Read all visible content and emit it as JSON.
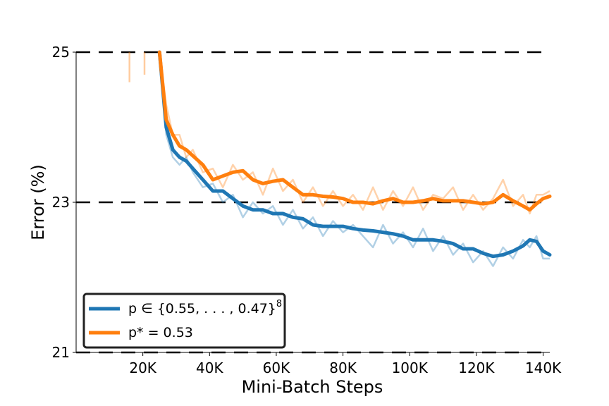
{
  "chart_data": {
    "type": "line",
    "xlabel": "Mini-Batch Steps",
    "ylabel": "Error (%)",
    "xlim": [
      0,
      142000
    ],
    "ylim": [
      21,
      25
    ],
    "x_ticks": [
      {
        "value": 20000,
        "label": "20K"
      },
      {
        "value": 40000,
        "label": "40K"
      },
      {
        "value": 60000,
        "label": "60K"
      },
      {
        "value": 80000,
        "label": "80K"
      },
      {
        "value": 100000,
        "label": "100K"
      },
      {
        "value": 120000,
        "label": "120K"
      },
      {
        "value": 140000,
        "label": "140K"
      }
    ],
    "y_ticks": [
      {
        "value": 21,
        "label": "21"
      },
      {
        "value": 23,
        "label": "23"
      },
      {
        "value": 25,
        "label": "25"
      }
    ],
    "reference_lines": [
      21,
      23,
      25
    ],
    "legend": {
      "placement": "lower-left"
    },
    "series": [
      {
        "name": "p ∈ {0.55, . . . , 0.47}",
        "name_superscript": "8",
        "color": "#1f77b4",
        "x": [
          25000,
          27000,
          29000,
          31000,
          33000,
          35000,
          38000,
          41000,
          44000,
          47000,
          50000,
          53000,
          56000,
          59000,
          62000,
          65000,
          68000,
          71000,
          74000,
          77000,
          80000,
          83000,
          86000,
          89000,
          92000,
          95000,
          98000,
          101000,
          104000,
          107000,
          110000,
          113000,
          116000,
          119000,
          122000,
          125000,
          128000,
          131000,
          134000,
          136000,
          138000,
          140000,
          142000
        ],
        "smoothed": [
          25.0,
          24.0,
          23.7,
          23.6,
          23.55,
          23.45,
          23.3,
          23.15,
          23.15,
          23.05,
          22.95,
          22.9,
          22.9,
          22.85,
          22.85,
          22.8,
          22.78,
          22.7,
          22.68,
          22.68,
          22.68,
          22.65,
          22.63,
          22.62,
          22.6,
          22.58,
          22.55,
          22.5,
          22.5,
          22.5,
          22.48,
          22.45,
          22.38,
          22.38,
          22.32,
          22.28,
          22.3,
          22.35,
          22.42,
          22.5,
          22.48,
          22.35,
          22.3
        ],
        "raw": [
          25.0,
          23.9,
          23.6,
          23.5,
          23.6,
          23.4,
          23.2,
          23.25,
          23.0,
          23.1,
          22.8,
          23.0,
          22.85,
          22.95,
          22.7,
          22.9,
          22.65,
          22.8,
          22.55,
          22.75,
          22.6,
          22.7,
          22.55,
          22.4,
          22.7,
          22.45,
          22.6,
          22.4,
          22.65,
          22.35,
          22.55,
          22.3,
          22.45,
          22.2,
          22.35,
          22.15,
          22.4,
          22.25,
          22.5,
          22.4,
          22.55,
          22.25,
          22.25
        ]
      },
      {
        "name": "p* = 0.53",
        "color": "#ff7f0e",
        "x": [
          25000,
          27000,
          29000,
          31000,
          33000,
          35000,
          38000,
          41000,
          44000,
          47000,
          50000,
          53000,
          56000,
          59000,
          62000,
          65000,
          68000,
          71000,
          74000,
          77000,
          80000,
          83000,
          86000,
          89000,
          92000,
          95000,
          98000,
          101000,
          104000,
          107000,
          110000,
          113000,
          116000,
          119000,
          122000,
          125000,
          128000,
          131000,
          134000,
          136000,
          138000,
          140000,
          142000
        ],
        "smoothed": [
          25.0,
          24.1,
          23.9,
          23.75,
          23.7,
          23.62,
          23.5,
          23.3,
          23.35,
          23.4,
          23.42,
          23.3,
          23.25,
          23.28,
          23.3,
          23.2,
          23.1,
          23.1,
          23.08,
          23.07,
          23.05,
          23.0,
          23.0,
          22.98,
          23.02,
          23.05,
          23.0,
          23.0,
          23.02,
          23.05,
          23.02,
          23.02,
          23.02,
          23.0,
          22.98,
          23.0,
          23.1,
          23.02,
          22.95,
          22.9,
          22.98,
          23.05,
          23.08
        ],
        "raw": [
          25.0,
          24.3,
          23.9,
          23.9,
          23.6,
          23.7,
          23.4,
          23.45,
          23.2,
          23.5,
          23.3,
          23.4,
          23.1,
          23.45,
          23.15,
          23.3,
          23.0,
          23.2,
          22.95,
          23.15,
          22.95,
          23.1,
          22.9,
          23.2,
          22.9,
          23.15,
          22.95,
          23.2,
          22.9,
          23.1,
          23.05,
          23.2,
          22.9,
          23.1,
          22.9,
          23.05,
          23.3,
          22.95,
          23.1,
          22.85,
          23.1,
          23.1,
          23.15
        ],
        "early_raw_x": [
          14500,
          16000,
          17500,
          19000,
          20500,
          22000,
          23500
        ],
        "early_raw_y": [
          25.0,
          24.6,
          25.0,
          25.0,
          24.7,
          25.0,
          25.0
        ]
      }
    ]
  }
}
